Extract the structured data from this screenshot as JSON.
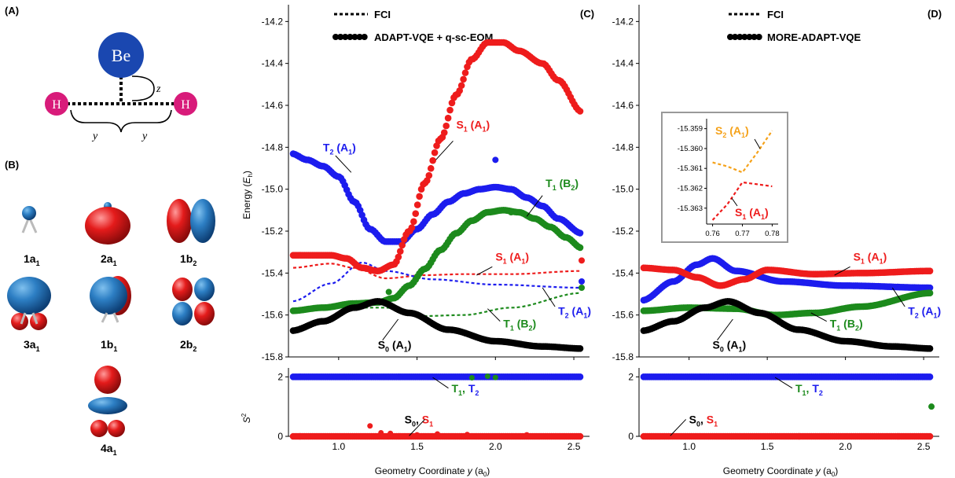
{
  "panels": {
    "A": "(A)",
    "B": "(B)",
    "C": "(C)",
    "D": "(D)"
  },
  "molecule": {
    "atom_center": "Be",
    "atom_left": "H",
    "atom_right": "H",
    "z_label": "z",
    "y_left": "y",
    "y_right": "y",
    "colors": {
      "be": "#1a47b0",
      "h": "#d81b7a"
    }
  },
  "orbitals": [
    {
      "base": "1a",
      "sub": "1",
      "shape": "small-sphere"
    },
    {
      "base": "2a",
      "sub": "1",
      "shape": "red-ellipsoid"
    },
    {
      "base": "1b",
      "sub": "2",
      "shape": "lobe-pair-horizontal"
    },
    {
      "base": "3a",
      "sub": "1",
      "shape": "blue-top-red-bottom"
    },
    {
      "base": "1b",
      "sub": "1",
      "shape": "blue-sphere-red-side"
    },
    {
      "base": "2b",
      "sub": "2",
      "shape": "four-lobe"
    },
    {
      "base": "4a",
      "sub": "1",
      "shape": "stacked-lobes"
    }
  ],
  "colors": {
    "S0": "#000000",
    "S1": "#ee1c1c",
    "T1": "#1c8a1c",
    "T2": "#1c1cee",
    "S2": "#f5a21a",
    "axis": "#000000",
    "inset_border": "#999999"
  },
  "labels": {
    "energy_axis_prefix": "Energy (",
    "energy_axis_unit": "E",
    "energy_axis_sub": "h",
    "energy_axis_suffix": ")",
    "s2_axis": "S",
    "s2_axis_sup": "2",
    "x_axis_prefix": "Geometry Coordinate ",
    "x_axis_var": "y",
    "x_axis_unit": " (a",
    "x_axis_unit_sub": "0",
    "x_axis_suffix": ")"
  },
  "chart_data": [
    {
      "id": "C",
      "type": "scatter",
      "legend": [
        {
          "style": "dotted",
          "label": "FCI"
        },
        {
          "style": "dots",
          "label": "ADAPT-VQE + q-sc-EOM"
        }
      ],
      "xlabel": "Geometry Coordinate y (a0)",
      "ylabel": "Energy (Eh)",
      "xlim": [
        0.68,
        2.6
      ],
      "ylim": [
        -15.8,
        -14.12
      ],
      "x_ticks": [
        "1.0",
        "1.5",
        "2.0",
        "2.5"
      ],
      "y_ticks": [
        "-15.8",
        "-15.6",
        "-15.4",
        "-15.2",
        "-15.0",
        "-14.8",
        "-14.6",
        "-14.4",
        "-14.2"
      ],
      "fci": {
        "S0": [
          [
            0.7,
            -15.675
          ],
          [
            0.9,
            -15.63
          ],
          [
            1.1,
            -15.565
          ],
          [
            1.25,
            -15.535
          ],
          [
            1.45,
            -15.59
          ],
          [
            1.7,
            -15.67
          ],
          [
            2.0,
            -15.725
          ],
          [
            2.3,
            -15.75
          ],
          [
            2.55,
            -15.76
          ]
        ],
        "S1": [
          [
            0.7,
            -15.375
          ],
          [
            0.95,
            -15.355
          ],
          [
            1.1,
            -15.375
          ],
          [
            1.3,
            -15.425
          ],
          [
            1.55,
            -15.41
          ],
          [
            1.8,
            -15.405
          ],
          [
            2.1,
            -15.405
          ],
          [
            2.55,
            -15.39
          ]
        ],
        "T1": [
          [
            0.7,
            -15.58
          ],
          [
            1.0,
            -15.565
          ],
          [
            1.3,
            -15.565
          ],
          [
            1.55,
            -15.605
          ],
          [
            1.8,
            -15.6
          ],
          [
            2.1,
            -15.565
          ],
          [
            2.55,
            -15.495
          ]
        ],
        "T2": [
          [
            0.7,
            -15.535
          ],
          [
            0.95,
            -15.45
          ],
          [
            1.15,
            -15.35
          ],
          [
            1.3,
            -15.39
          ],
          [
            1.6,
            -15.43
          ],
          [
            2.0,
            -15.455
          ],
          [
            2.55,
            -15.47
          ]
        ]
      },
      "points": {
        "S0": [
          [
            0.7,
            -15.675
          ],
          [
            0.9,
            -15.63
          ],
          [
            1.1,
            -15.565
          ],
          [
            1.25,
            -15.535
          ],
          [
            1.45,
            -15.59
          ],
          [
            1.7,
            -15.67
          ],
          [
            2.0,
            -15.725
          ],
          [
            2.3,
            -15.75
          ],
          [
            2.55,
            -15.76
          ]
        ],
        "S1": [
          [
            0.7,
            -15.315
          ],
          [
            0.95,
            -15.315
          ],
          [
            1.05,
            -15.33
          ],
          [
            1.15,
            -15.375
          ],
          [
            1.25,
            -15.39
          ],
          [
            1.35,
            -15.36
          ],
          [
            1.45,
            -15.2
          ],
          [
            1.55,
            -14.97
          ],
          [
            1.65,
            -14.76
          ],
          [
            1.75,
            -14.55
          ],
          [
            1.85,
            -14.38
          ],
          [
            1.95,
            -14.3
          ],
          [
            2.05,
            -14.3
          ],
          [
            2.15,
            -14.34
          ],
          [
            2.3,
            -14.4
          ],
          [
            2.4,
            -14.48
          ],
          [
            2.55,
            -14.63
          ]
        ],
        "T2": [
          [
            0.7,
            -14.83
          ],
          [
            0.8,
            -14.86
          ],
          [
            0.9,
            -14.89
          ],
          [
            1.0,
            -14.94
          ],
          [
            1.1,
            -15.06
          ],
          [
            1.2,
            -15.19
          ],
          [
            1.3,
            -15.25
          ],
          [
            1.4,
            -15.25
          ],
          [
            1.5,
            -15.19
          ],
          [
            1.6,
            -15.12
          ],
          [
            1.7,
            -15.06
          ],
          [
            1.8,
            -15.02
          ],
          [
            1.9,
            -15.0
          ],
          [
            2.0,
            -14.99
          ],
          [
            2.1,
            -15.0
          ],
          [
            2.2,
            -15.04
          ],
          [
            2.3,
            -15.08
          ],
          [
            2.4,
            -15.14
          ],
          [
            2.55,
            -15.21
          ]
        ],
        "T1": [
          [
            0.7,
            -15.58
          ],
          [
            0.9,
            -15.565
          ],
          [
            1.1,
            -15.545
          ],
          [
            1.25,
            -15.54
          ],
          [
            1.35,
            -15.52
          ],
          [
            1.45,
            -15.46
          ],
          [
            1.55,
            -15.38
          ],
          [
            1.65,
            -15.29
          ],
          [
            1.75,
            -15.21
          ],
          [
            1.85,
            -15.15
          ],
          [
            1.95,
            -15.11
          ],
          [
            2.05,
            -15.1
          ],
          [
            2.15,
            -15.11
          ],
          [
            2.25,
            -15.14
          ],
          [
            2.35,
            -15.18
          ],
          [
            2.45,
            -15.23
          ],
          [
            2.55,
            -15.28
          ]
        ]
      },
      "annotations": [
        {
          "text": "T",
          "sub": "2",
          "rest": " (A",
          "rest_sub": "1",
          "rest_end": ")",
          "series": "T2",
          "at": [
            0.9,
            -14.82
          ]
        },
        {
          "text": "S",
          "sub": "1",
          "rest": " (A",
          "rest_sub": "1",
          "rest_end": ")",
          "series": "S1",
          "at": [
            1.75,
            -14.71
          ]
        },
        {
          "text": "T",
          "sub": "1",
          "rest": " (B",
          "rest_sub": "2",
          "rest_end": ")",
          "series": "T1",
          "at": [
            2.32,
            -14.99
          ]
        },
        {
          "text": "S",
          "sub": "1",
          "rest": " (A",
          "rest_sub": "1",
          "rest_end": ")",
          "series": "S1",
          "at": [
            2.0,
            -15.34
          ]
        },
        {
          "text": "T",
          "sub": "1",
          "rest": " (B",
          "rest_sub": "2",
          "rest_end": ")",
          "series": "T1",
          "at": [
            2.05,
            -15.66
          ]
        },
        {
          "text": "T",
          "sub": "2",
          "rest": " (A",
          "rest_sub": "1",
          "rest_end": ")",
          "series": "T2",
          "at": [
            2.4,
            -15.6
          ]
        },
        {
          "text": "S",
          "sub": "0",
          "rest": " (A",
          "rest_sub": "1",
          "rest_end": ")",
          "series": "S0",
          "at": [
            1.25,
            -15.76
          ]
        }
      ],
      "s2": {
        "ylabel": "S2",
        "ylim": [
          0,
          2.3
        ],
        "y_ticks": [
          "0",
          "2"
        ],
        "lines": {
          "triplet": 2,
          "singlet": 0
        },
        "labels": [
          {
            "parts": [
              [
                "T",
                "T1"
              ],
              [
                "1",
                "T1",
                "sub"
              ],
              [
                ", ",
                "T1"
              ],
              [
                "T",
                "T2"
              ],
              [
                "2",
                "T2",
                "sub"
              ]
            ]
          },
          {
            "parts": [
              [
                "S",
                "S0"
              ],
              [
                "0",
                "S0",
                "sub"
              ],
              [
                ", ",
                "S0"
              ],
              [
                "S",
                "S1"
              ],
              [
                "1",
                "S1",
                "sub"
              ]
            ]
          }
        ]
      }
    },
    {
      "id": "D",
      "type": "scatter",
      "legend": [
        {
          "style": "dotted",
          "label": "FCI"
        },
        {
          "style": "dots",
          "label": "MORE-ADAPT-VQE"
        }
      ],
      "xlabel": "Geometry Coordinate y (a0)",
      "ylabel": "",
      "xlim": [
        0.68,
        2.6
      ],
      "ylim": [
        -15.8,
        -14.12
      ],
      "x_ticks": [
        "1.0",
        "1.5",
        "2.0",
        "2.5"
      ],
      "y_ticks": [
        "-15.8",
        "-15.6",
        "-15.4",
        "-15.2",
        "-15.0",
        "-14.8",
        "-14.6",
        "-14.4",
        "-14.2"
      ],
      "curves": {
        "S0": [
          [
            0.7,
            -15.675
          ],
          [
            0.9,
            -15.63
          ],
          [
            1.1,
            -15.565
          ],
          [
            1.25,
            -15.535
          ],
          [
            1.45,
            -15.59
          ],
          [
            1.7,
            -15.67
          ],
          [
            2.0,
            -15.725
          ],
          [
            2.3,
            -15.75
          ],
          [
            2.55,
            -15.76
          ]
        ],
        "S1": [
          [
            0.7,
            -15.375
          ],
          [
            0.9,
            -15.385
          ],
          [
            1.05,
            -15.42
          ],
          [
            1.2,
            -15.46
          ],
          [
            1.35,
            -15.43
          ],
          [
            1.5,
            -15.385
          ],
          [
            1.8,
            -15.405
          ],
          [
            2.1,
            -15.4
          ],
          [
            2.55,
            -15.39
          ]
        ],
        "T1": [
          [
            0.7,
            -15.58
          ],
          [
            1.0,
            -15.565
          ],
          [
            1.3,
            -15.57
          ],
          [
            1.55,
            -15.6
          ],
          [
            1.8,
            -15.59
          ],
          [
            2.1,
            -15.56
          ],
          [
            2.55,
            -15.495
          ]
        ],
        "T2": [
          [
            0.7,
            -15.53
          ],
          [
            0.9,
            -15.44
          ],
          [
            1.05,
            -15.36
          ],
          [
            1.15,
            -15.33
          ],
          [
            1.3,
            -15.39
          ],
          [
            1.6,
            -15.44
          ],
          [
            2.0,
            -15.46
          ],
          [
            2.55,
            -15.47
          ]
        ]
      },
      "annotations": [
        {
          "text": "S",
          "sub": "1",
          "rest": " (A",
          "rest_sub": "1",
          "rest_end": ")",
          "series": "S1",
          "at": [
            2.05,
            -15.34
          ]
        },
        {
          "text": "T",
          "sub": "1",
          "rest": " (B",
          "rest_sub": "2",
          "rest_end": ")",
          "series": "T1",
          "at": [
            1.9,
            -15.66
          ]
        },
        {
          "text": "T",
          "sub": "2",
          "rest": " (A",
          "rest_sub": "1",
          "rest_end": ")",
          "series": "T2",
          "at": [
            2.4,
            -15.6
          ]
        },
        {
          "text": "S",
          "sub": "0",
          "rest": " (A",
          "rest_sub": "1",
          "rest_end": ")",
          "series": "S0",
          "at": [
            1.15,
            -15.76
          ]
        }
      ],
      "inset": {
        "xlim": [
          0.758,
          0.782
        ],
        "ylim": [
          -15.3638,
          -15.3585
        ],
        "x_ticks": [
          "0.76",
          "0.77",
          "0.78"
        ],
        "y_ticks": [
          "-15.359",
          "-15.360",
          "-15.361",
          "-15.362",
          "-15.363"
        ],
        "S2": [
          [
            0.76,
            -15.3607
          ],
          [
            0.765,
            -15.3609
          ],
          [
            0.77,
            -15.3612
          ],
          [
            0.775,
            -15.3602
          ],
          [
            0.78,
            -15.3591
          ]
        ],
        "S1": [
          [
            0.76,
            -15.3636
          ],
          [
            0.765,
            -15.3628
          ],
          [
            0.77,
            -15.3617
          ],
          [
            0.775,
            -15.3618
          ],
          [
            0.78,
            -15.3619
          ]
        ],
        "labels": [
          {
            "text": "S",
            "sub": "2",
            "rest": " (A",
            "rest_sub": "1",
            "rest_end": ")",
            "series": "S2"
          },
          {
            "text": "S",
            "sub": "1",
            "rest": " (A",
            "rest_sub": "1",
            "rest_end": ")",
            "series": "S1"
          }
        ]
      },
      "s2": {
        "ylim": [
          0,
          2.3
        ],
        "y_ticks": [
          "0",
          "2"
        ],
        "lines": {
          "triplet": 2,
          "singlet": 0
        },
        "outlier": [
          2.55,
          1.0
        ],
        "labels": [
          {
            "parts": [
              [
                "T",
                "T1"
              ],
              [
                "1",
                "T1",
                "sub"
              ],
              [
                ", ",
                "T1"
              ],
              [
                "T",
                "T2"
              ],
              [
                "2",
                "T2",
                "sub"
              ]
            ]
          },
          {
            "parts": [
              [
                "S",
                "S0"
              ],
              [
                "0",
                "S0",
                "sub"
              ],
              [
                ", ",
                "S0"
              ],
              [
                "S",
                "S1"
              ],
              [
                "1",
                "S1",
                "sub"
              ]
            ]
          }
        ]
      }
    }
  ]
}
